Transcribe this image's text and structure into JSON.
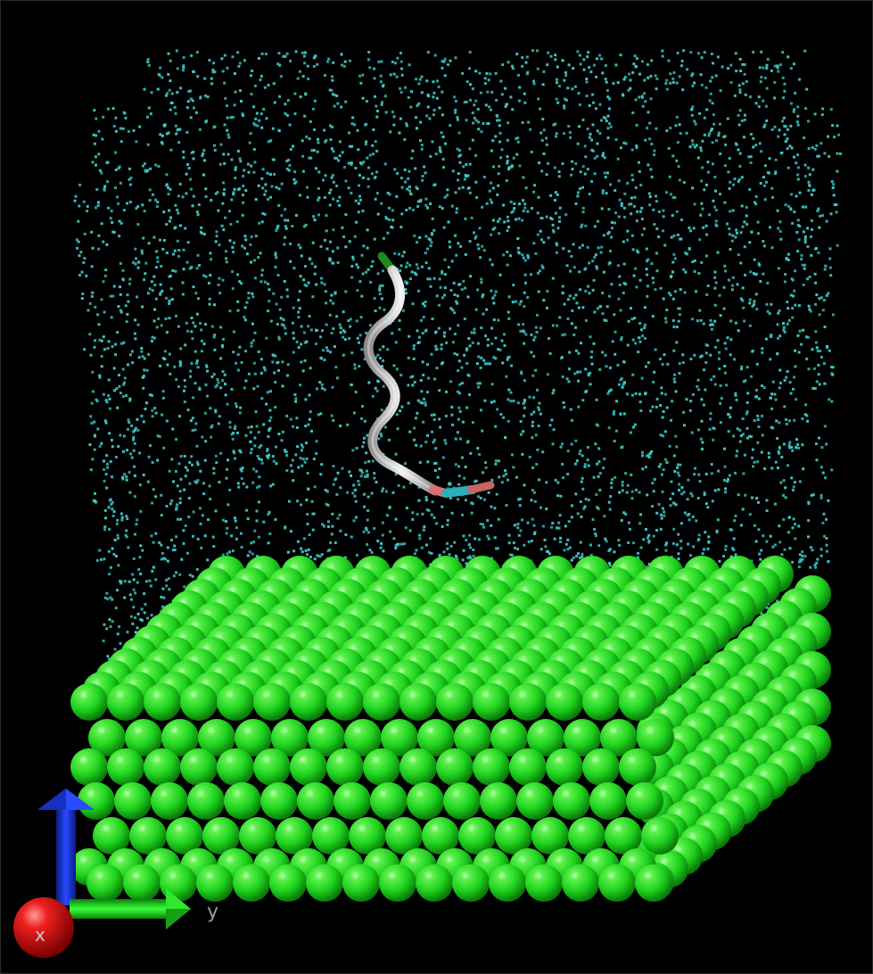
{
  "scene": {
    "background_color": "#000000",
    "solvent_color": "#40c8c8",
    "slab_atom_color": "#22dd22",
    "peptide_color": "#d8d8d8",
    "peptide_terminal_top_color": "#1f8a1f",
    "peptide_terminal_bottom_color": "#2ab0b8",
    "peptide_accent_color": "#e07070"
  },
  "axes": {
    "x_label": "x",
    "y_label": "y",
    "x_color": "#dd1111",
    "y_color": "#22cc22",
    "z_color": "#1133ee"
  }
}
